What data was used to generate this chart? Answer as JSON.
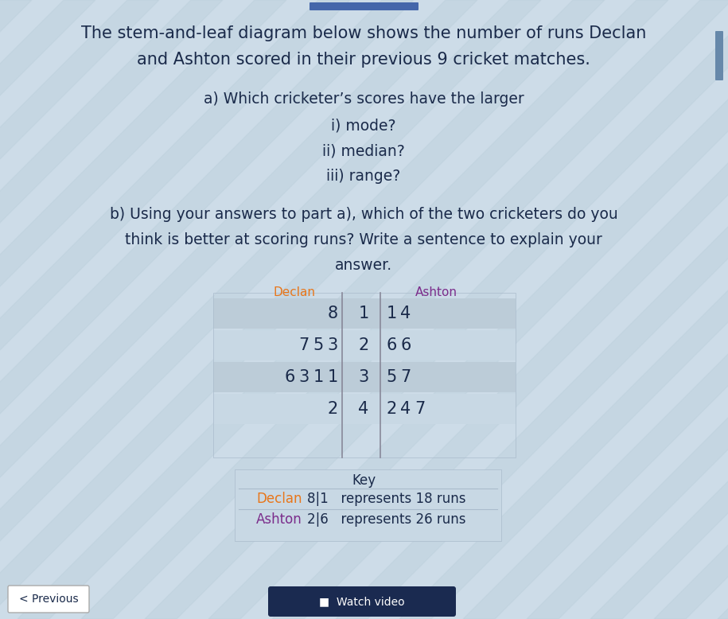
{
  "title_line1": "The stem-and-leaf diagram below shows the number of runs Declan",
  "title_line2": "and Ashton scored in their previous 9 cricket matches.",
  "question_a": "a) Which cricketer’s scores have the larger",
  "question_a_i": "i) mode?",
  "question_a_ii": "ii) median?",
  "question_a_iii": "iii) range?",
  "question_b_line1": "b) Using your answers to part a), which of the two cricketers do you",
  "question_b_line2": "think is better at scoring runs? Write a sentence to explain your",
  "question_b_line3": "answer.",
  "declan_label": "Declan",
  "ashton_label": "Ashton",
  "declan_color": "#E8761A",
  "ashton_color": "#7B2D8B",
  "stems": [
    "1",
    "2",
    "3",
    "4"
  ],
  "declan_leaves": [
    [
      "8"
    ],
    [
      "7",
      "5",
      "3"
    ],
    [
      "6",
      "3",
      "1",
      "1"
    ],
    [
      "2"
    ]
  ],
  "ashton_leaves": [
    [
      "1",
      "4"
    ],
    [
      "6",
      "6"
    ],
    [
      "5",
      "7"
    ],
    [
      "2",
      "4",
      "7"
    ]
  ],
  "key_title": "Key",
  "key_declan_label": "Declan",
  "key_declan_entry": "8|1   represents 18 runs",
  "key_ashton_label": "Ashton",
  "key_ashton_entry": "2|6   represents 26 runs",
  "bg_color": "#cddce8",
  "table_bg": "#c8d8e4",
  "stripe_color1": "#bfcfdc",
  "stripe_color2": "#c8d8e4",
  "key_bg": "#c8d8e4",
  "prev_button": "< Previous",
  "watch_video": "Watch video",
  "text_color": "#1a2a4a",
  "title_fontsize": 15,
  "question_fontsize": 13.5,
  "table_fontsize": 15,
  "key_fontsize": 12
}
